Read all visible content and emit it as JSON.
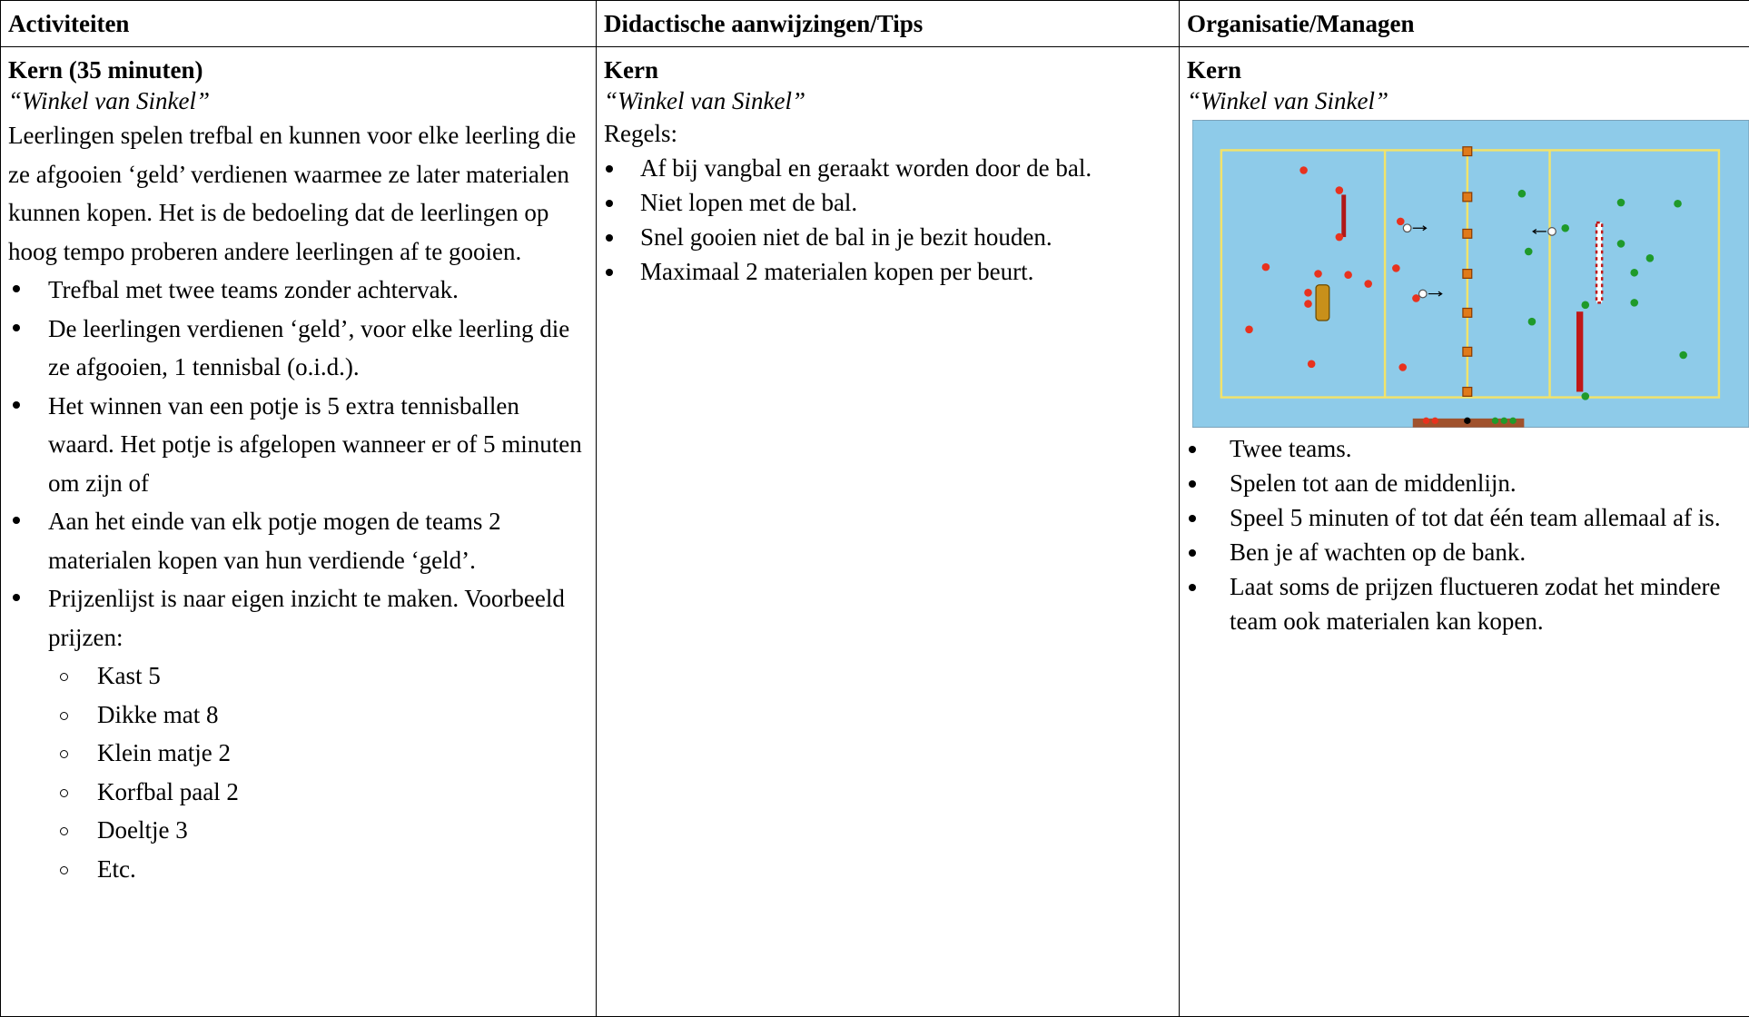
{
  "table": {
    "headers": [
      "Activiteiten",
      "Didactische aanwijzingen/Tips",
      "Organisatie/Managen"
    ],
    "columns": [
      {
        "heading": "Kern (35 minuten)",
        "subtitle": "“Winkel van Sinkel”",
        "paragraph": "Leerlingen spelen trefbal en kunnen voor elke leerling die ze afgooien ‘geld’ verdienen waarmee ze later materialen kunnen kopen. Het is de bedoeling dat de leerlingen op hoog tempo proberen andere leerlingen af te gooien.",
        "bullets": [
          {
            "text": "Trefbal met twee teams zonder achtervak."
          },
          {
            "text": "De leerlingen verdienen ‘geld’, voor elke leerling die ze afgooien, 1 tennisbal (o.i.d.)."
          },
          {
            "text": "Het winnen van een potje is 5 extra tennisballen waard. Het potje is afgelopen wanneer er of 5 minuten om zijn of"
          },
          {
            "text": "Aan het einde van elk potje mogen de teams 2 materialen kopen van hun verdiende ‘geld’."
          },
          {
            "text": "Prijzenlijst is naar eigen inzicht te maken. Voorbeeld prijzen:",
            "items": [
              "Kast 5",
              "Dikke mat 8",
              "Klein matje 2",
              "Korfbal paal 2",
              "Doeltje 3",
              "Etc."
            ]
          }
        ]
      },
      {
        "heading": "Kern",
        "subtitle": "“Winkel van Sinkel”",
        "label": "Regels:",
        "bullets": [
          {
            "text": "Af bij vangbal en geraakt worden door de bal."
          },
          {
            "text": "Niet lopen met de bal."
          },
          {
            "text": "Snel gooien niet de bal in je bezit houden."
          },
          {
            "text": "Maximaal 2 materialen kopen per beurt."
          }
        ]
      },
      {
        "heading": "Kern",
        "subtitle": "“Winkel van Sinkel”",
        "bullets": [
          {
            "text": "Twee teams."
          },
          {
            "text": "Spelen tot aan de middenlijn."
          },
          {
            "text": "Speel 5 minuten of tot dat één team allemaal af is."
          },
          {
            "text": "Ben je af wachten op de bank."
          },
          {
            "text": "Laat soms de prijzen fluctueren zodat het mindere team ook materialen kan kopen."
          }
        ]
      }
    ]
  }
}
